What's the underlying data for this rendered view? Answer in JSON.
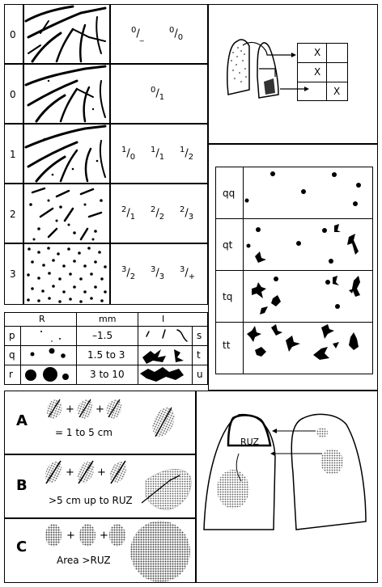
{
  "profusion": {
    "rows": [
      {
        "label": "0",
        "fracs": [
          {
            "num": "0",
            "den": "_"
          },
          {
            "num": "0",
            "den": "0"
          }
        ]
      },
      {
        "label": "0",
        "fracs": [
          {
            "num": "0",
            "den": "1"
          }
        ]
      },
      {
        "label": "1",
        "fracs": [
          {
            "num": "1",
            "den": "0"
          },
          {
            "num": "1",
            "den": "1"
          },
          {
            "num": "1",
            "den": "2"
          }
        ]
      },
      {
        "label": "2",
        "fracs": [
          {
            "num": "2",
            "den": "1"
          },
          {
            "num": "2",
            "den": "2"
          },
          {
            "num": "2",
            "den": "3"
          }
        ]
      },
      {
        "label": "3",
        "fracs": [
          {
            "num": "3",
            "den": "2"
          },
          {
            "num": "3",
            "den": "3"
          },
          {
            "num": "3",
            "den": "+"
          }
        ]
      }
    ]
  },
  "zones": {
    "marks": [
      "X",
      "X",
      "X"
    ]
  },
  "size_table": {
    "headers": [
      "R",
      "mm",
      "I"
    ],
    "rows": [
      {
        "left": "p",
        "range": "–1.5",
        "right": "s"
      },
      {
        "left": "q",
        "range": "1.5 to 3",
        "right": "t"
      },
      {
        "left": "r",
        "range": "3 to 10",
        "right": "u"
      }
    ]
  },
  "shape_pairs": {
    "labels": [
      "qq",
      "qt",
      "tq",
      "tt"
    ]
  },
  "large_opacities": [
    {
      "letter": "A",
      "caption": "= 1 to 5 cm"
    },
    {
      "letter": "B",
      "caption": ">5 cm up to RUZ"
    },
    {
      "letter": "C",
      "caption": "Area >RUZ"
    }
  ],
  "ruz_label": "RUZ",
  "colors": {
    "line": "#000000",
    "background": "#ffffff",
    "shade": "#8a8a8a"
  }
}
